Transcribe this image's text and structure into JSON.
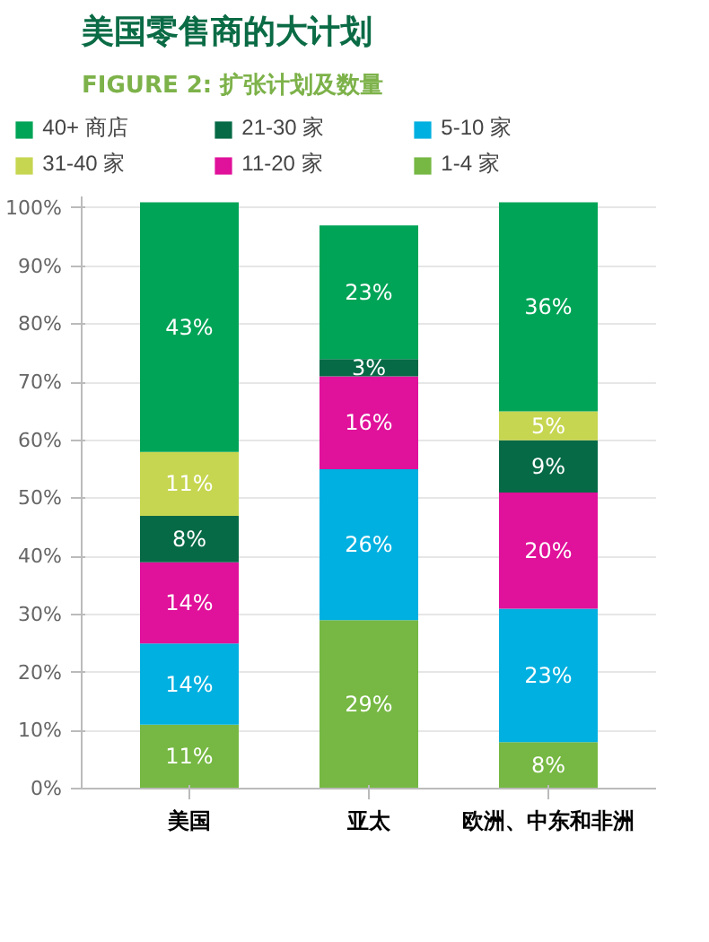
{
  "chart_data": {
    "type": "bar",
    "title": "美国零售商的大计划",
    "subtitle": "FIGURE 2: 扩张计划及数量",
    "categories": [
      "美国",
      "亚太",
      "欧洲、中东和非洲"
    ],
    "stacked": true,
    "grid": "y",
    "legend": "top",
    "ylim": [
      0,
      102
    ],
    "yticks": [
      {
        "value": 0,
        "label": "0%"
      },
      {
        "value": 10,
        "label": "10%"
      },
      {
        "value": 20,
        "label": "20%"
      },
      {
        "value": 30,
        "label": "30%"
      },
      {
        "value": 40,
        "label": "40%"
      },
      {
        "value": 50,
        "label": "50%"
      },
      {
        "value": 60,
        "label": "60%"
      },
      {
        "value": 70,
        "label": "70%"
      },
      {
        "value": 80,
        "label": "80%"
      },
      {
        "value": 90,
        "label": "90%"
      },
      {
        "value": 100,
        "label": "100%"
      }
    ],
    "series": [
      {
        "name": "1-4 家",
        "color": "#76b843",
        "values": [
          11,
          29,
          8
        ],
        "value_labels": [
          "11%",
          "29%",
          "8%"
        ]
      },
      {
        "name": "5-10 家",
        "color": "#00b0e0",
        "values": [
          14,
          26,
          23
        ],
        "value_labels": [
          "14%",
          "26%",
          "23%"
        ]
      },
      {
        "name": "11-20 家",
        "color": "#e0119a",
        "values": [
          14,
          16,
          20
        ],
        "value_labels": [
          "14%",
          "16%",
          "20%"
        ]
      },
      {
        "name": "21-30 家",
        "color": "#076a47",
        "values": [
          8,
          3,
          9
        ],
        "value_labels": [
          "8%",
          "3%",
          "9%"
        ]
      },
      {
        "name": "31-40 家",
        "color": "#c6d650",
        "values": [
          11,
          null,
          5
        ],
        "value_labels": [
          "11%",
          null,
          "5%"
        ]
      },
      {
        "name": "40+ 商店",
        "color": "#00a457",
        "values": [
          43,
          23,
          36
        ],
        "value_labels": [
          "43%",
          "23%",
          "36%"
        ]
      }
    ]
  }
}
